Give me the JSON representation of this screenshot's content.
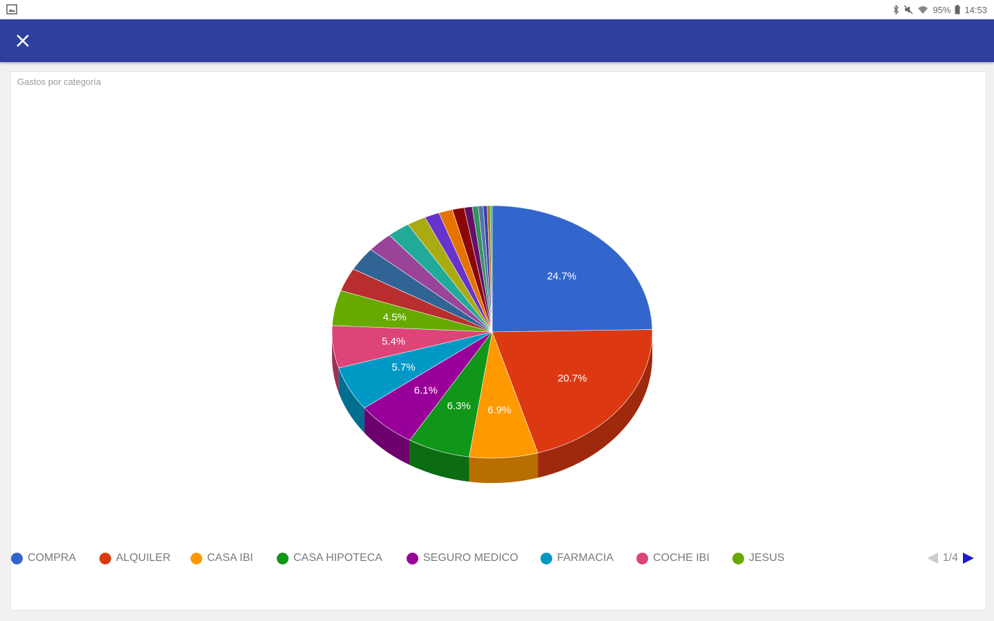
{
  "status": {
    "battery": "95%",
    "time": "14:53"
  },
  "chart_data": {
    "type": "pie",
    "title": "Gastos por categoría",
    "three_d": true,
    "legend_position": "bottom",
    "slices": [
      {
        "label": "COMPRA",
        "value": 24.7,
        "color": "#3366cc",
        "shown_label": "24.7%"
      },
      {
        "label": "ALQUILER",
        "value": 20.7,
        "color": "#dc3912",
        "shown_label": "20.7%"
      },
      {
        "label": "CASA IBI",
        "value": 6.9,
        "color": "#ff9900",
        "shown_label": "6.9%"
      },
      {
        "label": "CASA HIPOTECA",
        "value": 6.3,
        "color": "#109618",
        "shown_label": "6.3%"
      },
      {
        "label": "SEGURO MEDICO",
        "value": 6.1,
        "color": "#990099",
        "shown_label": "6.1%"
      },
      {
        "label": "FARMACIA",
        "value": 5.7,
        "color": "#0099c6",
        "shown_label": "5.7%"
      },
      {
        "label": "COCHE IBI",
        "value": 5.4,
        "color": "#dd4477",
        "shown_label": "5.4%"
      },
      {
        "label": "JESUS",
        "value": 4.5,
        "color": "#66aa00",
        "shown_label": "4.5%"
      },
      {
        "value": 3.0,
        "color": "#b82e2e",
        "shown_label": ""
      },
      {
        "value": 3.0,
        "color": "#316395",
        "shown_label": ""
      },
      {
        "value": 2.6,
        "color": "#994499",
        "shown_label": ""
      },
      {
        "value": 2.3,
        "color": "#22aa99",
        "shown_label": ""
      },
      {
        "value": 1.9,
        "color": "#aaaa11",
        "shown_label": ""
      },
      {
        "value": 1.5,
        "color": "#6633cc",
        "shown_label": ""
      },
      {
        "value": 1.4,
        "color": "#e67300",
        "shown_label": ""
      },
      {
        "value": 1.2,
        "color": "#8b0707",
        "shown_label": ""
      },
      {
        "value": 0.8,
        "color": "#651067",
        "shown_label": ""
      },
      {
        "value": 0.6,
        "color": "#329262",
        "shown_label": ""
      },
      {
        "value": 0.5,
        "color": "#5574a6",
        "shown_label": ""
      },
      {
        "value": 0.4,
        "color": "#3b3eac",
        "shown_label": ""
      },
      {
        "value": 0.3,
        "color": "#b77322",
        "shown_label": ""
      },
      {
        "value": 0.2,
        "color": "#16d620",
        "shown_label": ""
      }
    ]
  },
  "legend": {
    "items": [
      "COMPRA",
      "ALQUILER",
      "CASA IBI",
      "CASA HIPOTECA",
      "SEGURO MEDICO",
      "FARMACIA",
      "COCHE IBI",
      "JESUS"
    ],
    "page": "1/4"
  },
  "colors": {
    "appbar": "#2e3f9e",
    "pager_active": "#1a1ad4",
    "pager_inactive": "#cccccc"
  }
}
